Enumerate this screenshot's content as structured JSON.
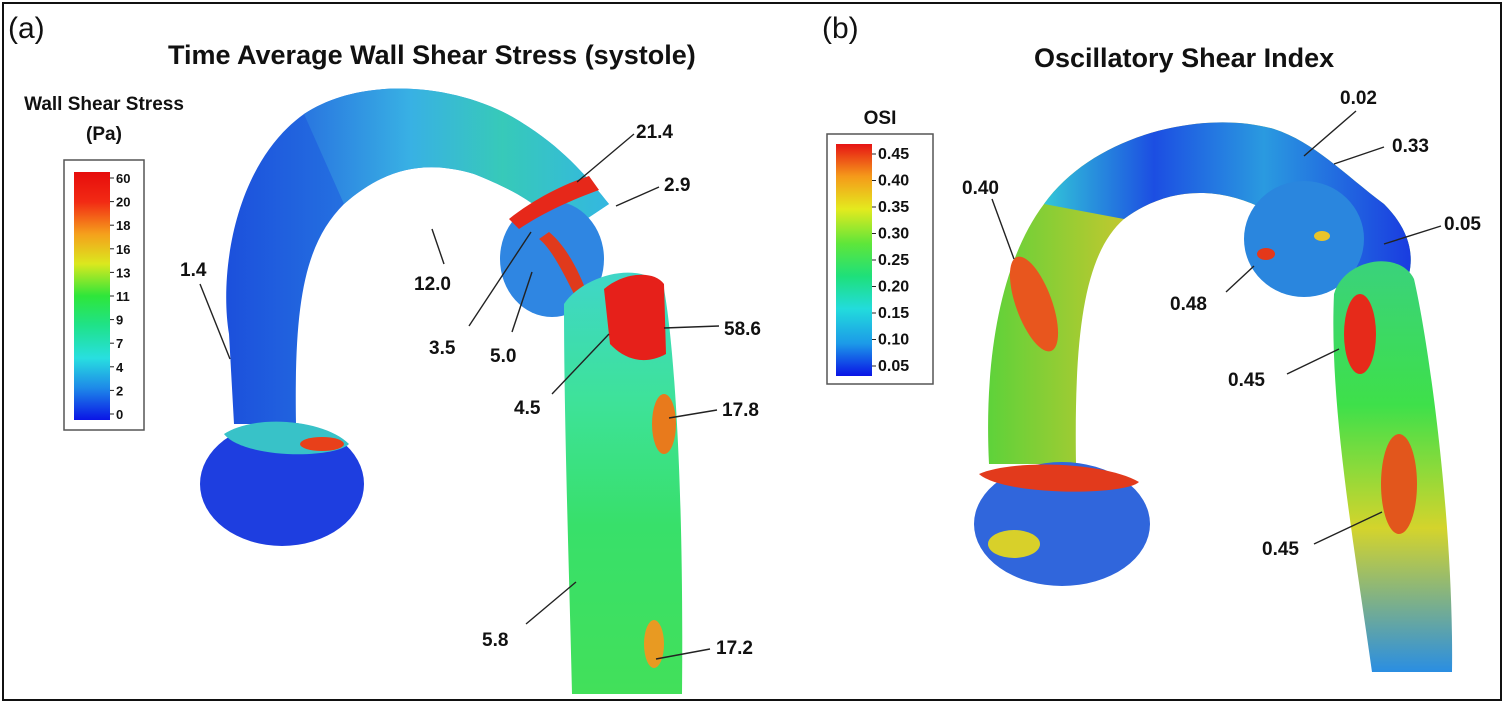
{
  "panel_a": {
    "label": "(a)",
    "title": "Time Average Wall Shear Stress (systole)",
    "colorbar": {
      "title_line1": "Wall Shear Stress",
      "title_line2": "(Pa)",
      "ticks": [
        "60",
        "20",
        "18",
        "16",
        "13",
        "11",
        "9",
        "7",
        "4",
        "2",
        "0"
      ]
    },
    "annotations": [
      "21.4",
      "2.9",
      "1.4",
      "12.0",
      "3.5",
      "5.0",
      "58.6",
      "4.5",
      "17.8",
      "5.8",
      "17.2"
    ]
  },
  "panel_b": {
    "label": "(b)",
    "title": "Oscillatory Shear Index",
    "colorbar": {
      "title": "OSI",
      "ticks": [
        "0.45",
        "0.40",
        "0.35",
        "0.30",
        "0.25",
        "0.20",
        "0.15",
        "0.10",
        "0.05"
      ]
    },
    "annotations": [
      "0.02",
      "0.33",
      "0.40",
      "0.05",
      "0.48",
      "0.45",
      "0.45"
    ]
  },
  "colors": {
    "low": "#0a1ee6",
    "mid": "#18e64a",
    "high": "#e61414"
  }
}
